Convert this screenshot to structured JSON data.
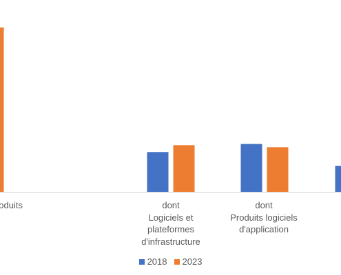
{
  "chart_data": {
    "type": "bar",
    "categories": [
      "oduits",
      "dont\nLogiciels et\nplateformes\nd'infrastructure",
      "dont\nProduits logiciels\nd'application",
      ""
    ],
    "series": [
      {
        "name": "2018",
        "color": "#4472C4",
        "values": [
          null,
          58,
          70,
          38
        ]
      },
      {
        "name": "2023",
        "color": "#ED7D31",
        "values": [
          240,
          68,
          65,
          null
        ]
      }
    ],
    "title": "",
    "xlabel": "",
    "ylabel": "",
    "ylim": [
      0,
      250
    ],
    "grid": false,
    "legend": "bottom"
  }
}
